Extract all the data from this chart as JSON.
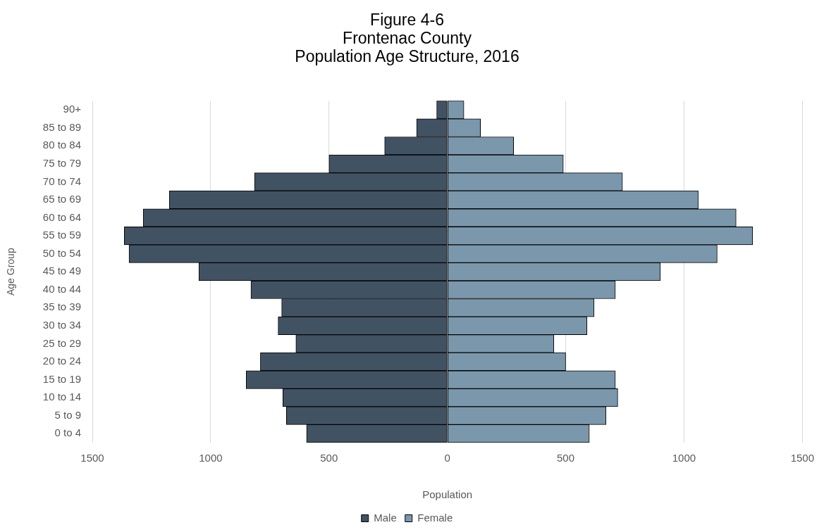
{
  "chart_data": {
    "type": "bar",
    "orientation": "horizontal",
    "stacked": true,
    "title": "Figure 4-6\nFrontenac County\nPopulation Age Structure, 2016",
    "xlabel": "Population",
    "ylabel": "Age Group",
    "categories": [
      "90+",
      "85 to 89",
      "80 to 84",
      "75 to 79",
      "70 to 74",
      "65 to 69",
      "60 to 64",
      "55 to 59",
      "50 to 54",
      "45 to 49",
      "40 to 44",
      "35 to 39",
      "30 to 34",
      "25 to 29",
      "20 to 24",
      "15 to 19",
      "10 to 14",
      "5 to 9",
      "0 to 4"
    ],
    "series": [
      {
        "name": "Male",
        "color": "#415263",
        "values": [
          -45,
          -130,
          -265,
          -500,
          -815,
          -1175,
          -1285,
          -1365,
          -1345,
          -1050,
          -830,
          -700,
          -715,
          -640,
          -790,
          -850,
          -695,
          -680,
          -595
        ]
      },
      {
        "name": "Female",
        "color": "#7b97ab",
        "values": [
          70,
          140,
          280,
          490,
          740,
          1060,
          1220,
          1290,
          1140,
          900,
          710,
          620,
          590,
          450,
          500,
          710,
          720,
          670,
          600
        ]
      }
    ],
    "xlim": [
      -1500,
      1500
    ],
    "xticks": [
      {
        "value": -1500,
        "label": "1500"
      },
      {
        "value": -1000,
        "label": "1000"
      },
      {
        "value": -500,
        "label": "500"
      },
      0,
      500,
      1000,
      1500
    ],
    "grid": "x",
    "legend": "bottom"
  }
}
